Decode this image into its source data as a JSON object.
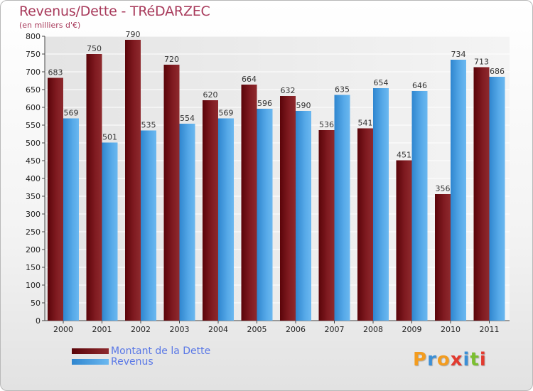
{
  "chart_data": {
    "type": "bar",
    "title": "Revenus/Dette - TRéDARZEC",
    "subtitle": "(en milliers d'€)",
    "categories": [
      "2000",
      "2001",
      "2002",
      "2003",
      "2004",
      "2005",
      "2006",
      "2007",
      "2008",
      "2009",
      "2010",
      "2011"
    ],
    "series": [
      {
        "name": "Montant de la Dette",
        "color": "#6b0a10",
        "values": [
          683,
          750,
          790,
          720,
          620,
          664,
          632,
          536,
          541,
          451,
          356,
          713
        ]
      },
      {
        "name": "Revenus",
        "color": "#4a9fe0",
        "values": [
          569,
          501,
          535,
          554,
          569,
          596,
          590,
          635,
          654,
          646,
          734,
          686
        ]
      }
    ],
    "ylim": [
      0,
      800
    ],
    "ytick_step": 50,
    "grid": true,
    "legend_position": "bottom-left"
  },
  "logo": {
    "letters": [
      {
        "char": "P",
        "color": "#f39c1f"
      },
      {
        "char": "r",
        "color": "#3b8fd6"
      },
      {
        "char": "o",
        "color": "#f39c1f"
      },
      {
        "char": "x",
        "color": "#e23a2f"
      },
      {
        "char": "i",
        "color": "#3b8fd6"
      },
      {
        "char": "t",
        "color": "#7bbf2f"
      },
      {
        "char": "i",
        "color": "#e23a2f"
      }
    ]
  }
}
